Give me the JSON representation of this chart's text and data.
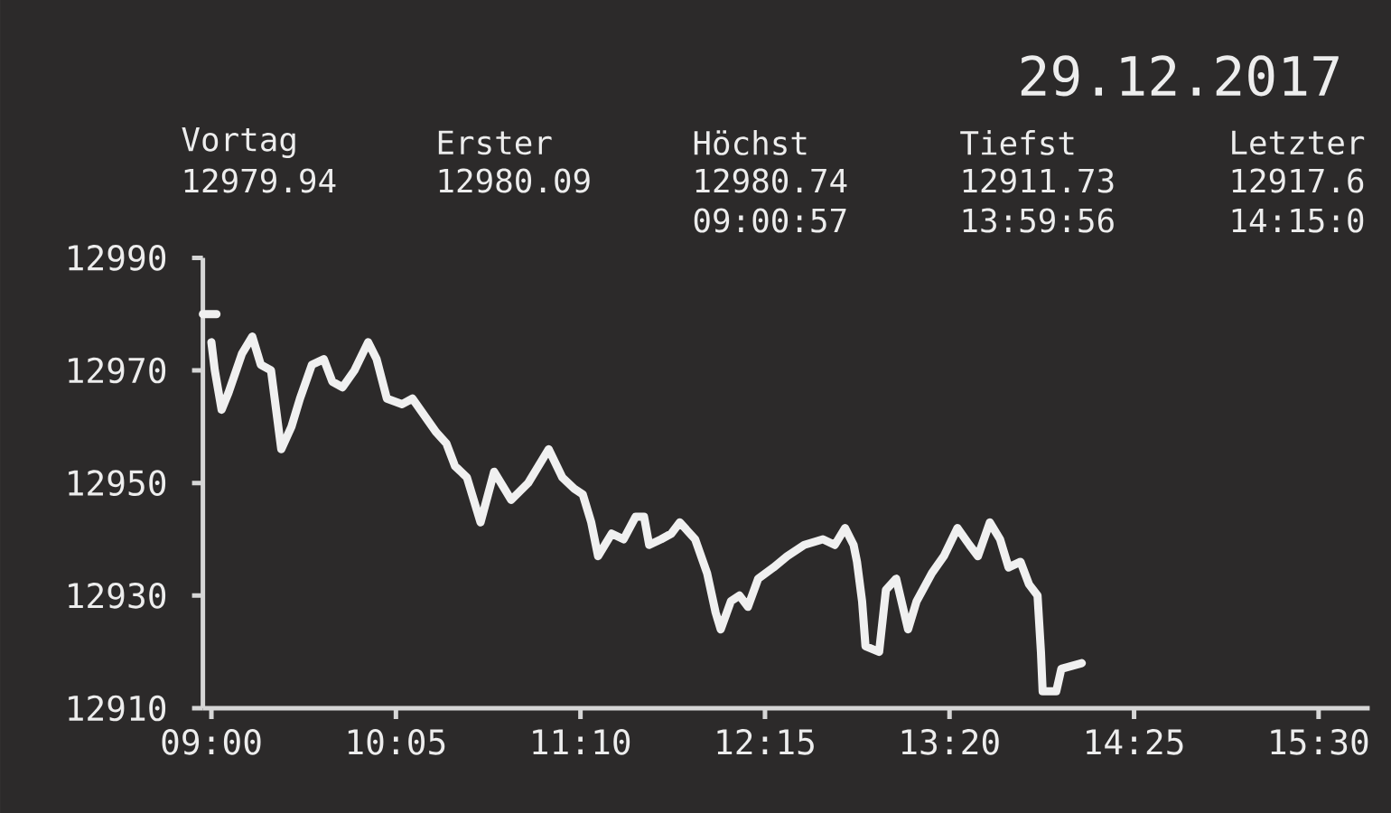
{
  "chart_data": {
    "type": "line",
    "title": "29.12.2017",
    "annotations": [
      "Vortag",
      "12979.94",
      "Erster",
      "12980.09",
      "Höchst",
      "12980.74",
      "09:00:57",
      "Tiefst",
      "12911.73",
      "13:59:56",
      "Letzter",
      "12917.6",
      "14:15:0"
    ],
    "x": [
      9.0,
      9.02,
      9.06,
      9.1,
      9.18,
      9.24,
      9.29,
      9.35,
      9.41,
      9.47,
      9.52,
      9.59,
      9.66,
      9.71,
      9.77,
      9.84,
      9.92,
      9.97,
      10.03,
      10.12,
      10.18,
      10.25,
      10.32,
      10.38,
      10.43,
      10.5,
      10.58,
      10.66,
      10.76,
      10.86,
      10.98,
      11.06,
      11.13,
      11.18,
      11.23,
      11.27,
      11.35,
      11.42,
      11.49,
      11.54,
      11.57,
      11.64,
      11.7,
      11.75,
      11.84,
      11.91,
      11.96,
      11.99,
      12.05,
      12.1,
      12.15,
      12.21,
      12.3,
      12.38,
      12.48,
      12.59,
      12.66,
      12.72,
      12.77,
      12.79,
      12.82,
      12.84,
      12.92,
      12.96,
      13.02,
      13.09,
      13.14,
      13.23,
      13.3,
      13.38,
      13.45,
      13.5,
      13.57,
      13.63,
      13.68,
      13.75,
      13.8,
      13.85,
      13.87,
      13.88,
      13.96,
      13.99,
      14.11
    ],
    "series": [
      {
        "color": "#f0f0f0",
        "values": [
          12975,
          12970,
          12963,
          12966,
          12973,
          12976,
          12971,
          12970,
          12956,
          12960,
          12965,
          12971,
          12972,
          12968,
          12967,
          12970,
          12975,
          12972,
          12965,
          12964,
          12965,
          12962,
          12959,
          12957,
          12953,
          12951,
          12943,
          12952,
          12947,
          12950,
          12956,
          12951,
          12949,
          12948,
          12943,
          12937,
          12941,
          12940,
          12944,
          12944,
          12939,
          12940,
          12941,
          12943,
          12940,
          12934,
          12927,
          12924,
          12929,
          12930,
          12928,
          12933,
          12935,
          12937,
          12939,
          12940,
          12939,
          12942,
          12939,
          12936,
          12929,
          12921,
          12920,
          12931,
          12933,
          12924,
          12929,
          12934,
          12937,
          12942,
          12939,
          12937,
          12943,
          12940,
          12935,
          12936,
          12932,
          12930,
          12920,
          12913,
          12913,
          12917,
          12918
        ]
      },
      {
        "type": "line",
        "color": "#f0f0f0",
        "x": [
          8.95,
          9.03
        ],
        "values": [
          12980,
          12980
        ]
      }
    ],
    "xlim": [
      8.95,
      15.8
    ],
    "ylim": [
      12910,
      12990
    ],
    "xticks": [
      {
        "value": 9,
        "label": "09:00"
      },
      {
        "value": 10.0833,
        "label": "10:05"
      },
      {
        "value": 11.1667,
        "label": "11:10"
      },
      {
        "value": 12.25,
        "label": "12:15"
      },
      {
        "value": 13.3333,
        "label": "13:20"
      },
      {
        "value": 14.4167,
        "label": "14:25"
      },
      {
        "value": 15.5,
        "label": "15:30"
      }
    ],
    "yticks": [
      12910,
      12930,
      12950,
      12970,
      12990
    ]
  }
}
